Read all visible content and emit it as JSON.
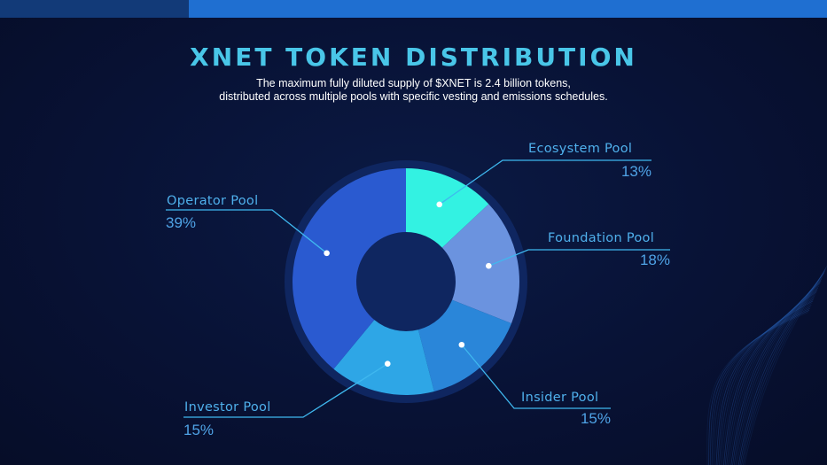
{
  "title": "XNET TOKEN DISTRIBUTION",
  "subtitle": {
    "line1": "The maximum fully diluted supply of $XNET is 2.4 billion tokens,",
    "line2": "distributed across multiple pools with specific vesting and emissions schedules."
  },
  "colors": {
    "accent": "#49c6e8",
    "label": "#4fb0ec",
    "leader_line": "#3fb8ef",
    "ring": "#0f2660"
  },
  "chart_data": {
    "type": "pie",
    "donut": true,
    "title": "XNET TOKEN DISTRIBUTION",
    "unit": "%",
    "slices": [
      {
        "name": "Ecosystem Pool",
        "value": 13,
        "label": "13%",
        "color": "#33f2e2"
      },
      {
        "name": "Foundation Pool",
        "value": 18,
        "label": "18%",
        "color": "#6b93df"
      },
      {
        "name": "Insider Pool",
        "value": 15,
        "label": "15%",
        "color": "#2a86d9"
      },
      {
        "name": "Investor Pool",
        "value": 15,
        "label": "15%",
        "color": "#2ea6e6"
      },
      {
        "name": "Operator Pool",
        "value": 39,
        "label": "39%",
        "color": "#2a5ad0"
      }
    ]
  }
}
